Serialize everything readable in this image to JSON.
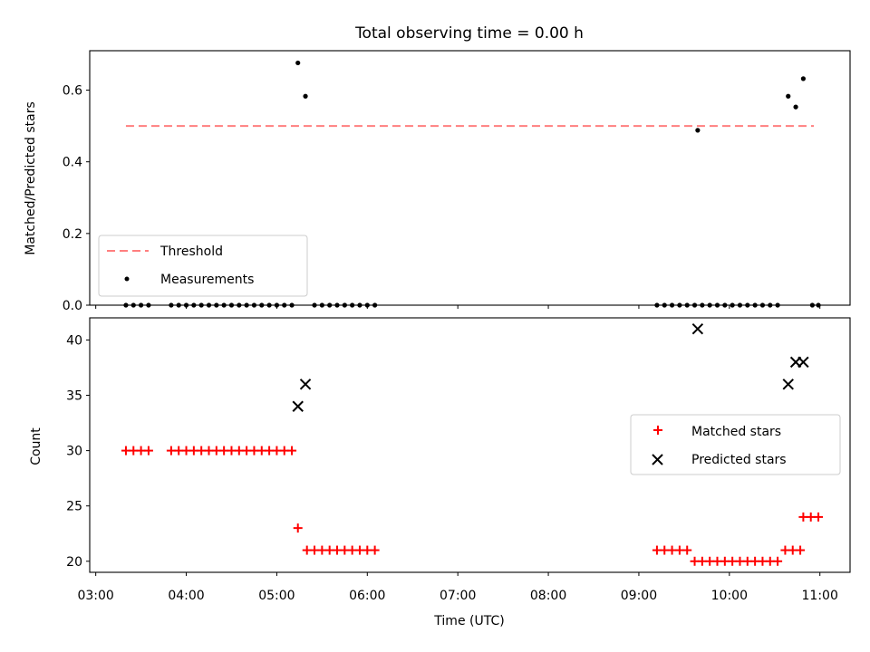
{
  "chart_data": {
    "type": "scatter",
    "title": "Total observing time = 0.00 h",
    "xlabel": "Time (UTC)",
    "x_axis": {
      "ticks": [
        "03:00",
        "04:00",
        "05:00",
        "06:00",
        "07:00",
        "08:00",
        "09:00",
        "10:00",
        "11:00"
      ],
      "range": [
        "02:56",
        "11:20"
      ]
    },
    "panels": [
      {
        "name": "ratio",
        "ylabel": "Matched/Predicted stars",
        "ylim": [
          0,
          0.71
        ],
        "yticks": [
          "0.0",
          "0.2",
          "0.4",
          "0.6"
        ],
        "grid": false,
        "legend": {
          "placement": "lower-left",
          "entries": [
            "Threshold",
            "Measurements"
          ]
        },
        "threshold": {
          "name": "Threshold",
          "value": 0.5,
          "x_start": "03:20",
          "x_end": "10:56",
          "color": "#ff7f7f",
          "style": "dashed"
        },
        "series": [
          {
            "name": "Measurements",
            "marker": "dot",
            "color": "#000000",
            "points": [
              [
                "03:20",
                0
              ],
              [
                "03:25",
                0
              ],
              [
                "03:30",
                0
              ],
              [
                "03:35",
                0
              ],
              [
                "03:50",
                0
              ],
              [
                "03:55",
                0
              ],
              [
                "04:00",
                0
              ],
              [
                "04:05",
                0
              ],
              [
                "04:10",
                0
              ],
              [
                "04:15",
                0
              ],
              [
                "04:20",
                0
              ],
              [
                "04:25",
                0
              ],
              [
                "04:30",
                0
              ],
              [
                "04:35",
                0
              ],
              [
                "04:40",
                0
              ],
              [
                "04:45",
                0
              ],
              [
                "04:50",
                0
              ],
              [
                "04:55",
                0
              ],
              [
                "05:00",
                0
              ],
              [
                "05:05",
                0
              ],
              [
                "05:10",
                0
              ],
              [
                "05:14",
                0.676
              ],
              [
                "05:19",
                0.583
              ],
              [
                "05:25",
                0
              ],
              [
                "05:30",
                0
              ],
              [
                "05:35",
                0
              ],
              [
                "05:40",
                0
              ],
              [
                "05:45",
                0
              ],
              [
                "05:50",
                0
              ],
              [
                "05:55",
                0
              ],
              [
                "06:00",
                0
              ],
              [
                "06:05",
                0
              ],
              [
                "09:12",
                0
              ],
              [
                "09:17",
                0
              ],
              [
                "09:22",
                0
              ],
              [
                "09:27",
                0
              ],
              [
                "09:32",
                0
              ],
              [
                "09:37",
                0
              ],
              [
                "09:39",
                0.488
              ],
              [
                "09:42",
                0
              ],
              [
                "09:47",
                0
              ],
              [
                "09:52",
                0
              ],
              [
                "09:57",
                0
              ],
              [
                "10:02",
                0
              ],
              [
                "10:07",
                0
              ],
              [
                "10:12",
                0
              ],
              [
                "10:17",
                0
              ],
              [
                "10:22",
                0
              ],
              [
                "10:27",
                0
              ],
              [
                "10:32",
                0
              ],
              [
                "10:39",
                0.583
              ],
              [
                "10:44",
                0.553
              ],
              [
                "10:49",
                0.632
              ],
              [
                "10:55",
                0
              ],
              [
                "10:59",
                0
              ]
            ]
          }
        ]
      },
      {
        "name": "count",
        "ylabel": "Count",
        "ylim": [
          19.0,
          42.0
        ],
        "yticks": [
          "20",
          "25",
          "30",
          "35",
          "40"
        ],
        "grid": false,
        "legend": {
          "placement": "center-right",
          "entries": [
            "Matched stars",
            "Predicted stars"
          ]
        },
        "series": [
          {
            "name": "Matched stars",
            "marker": "plus",
            "color": "#ff0000",
            "points": [
              [
                "03:20",
                30
              ],
              [
                "03:25",
                30
              ],
              [
                "03:30",
                30
              ],
              [
                "03:35",
                30
              ],
              [
                "03:50",
                30
              ],
              [
                "03:55",
                30
              ],
              [
                "04:00",
                30
              ],
              [
                "04:05",
                30
              ],
              [
                "04:10",
                30
              ],
              [
                "04:15",
                30
              ],
              [
                "04:20",
                30
              ],
              [
                "04:25",
                30
              ],
              [
                "04:30",
                30
              ],
              [
                "04:35",
                30
              ],
              [
                "04:40",
                30
              ],
              [
                "04:45",
                30
              ],
              [
                "04:50",
                30
              ],
              [
                "04:55",
                30
              ],
              [
                "05:00",
                30
              ],
              [
                "05:05",
                30
              ],
              [
                "05:10",
                30
              ],
              [
                "05:14",
                23
              ],
              [
                "05:20",
                21
              ],
              [
                "05:25",
                21
              ],
              [
                "05:30",
                21
              ],
              [
                "05:35",
                21
              ],
              [
                "05:40",
                21
              ],
              [
                "05:45",
                21
              ],
              [
                "05:50",
                21
              ],
              [
                "05:55",
                21
              ],
              [
                "06:00",
                21
              ],
              [
                "06:05",
                21
              ],
              [
                "09:12",
                21
              ],
              [
                "09:17",
                21
              ],
              [
                "09:22",
                21
              ],
              [
                "09:27",
                21
              ],
              [
                "09:32",
                21
              ],
              [
                "09:37",
                20
              ],
              [
                "09:42",
                20
              ],
              [
                "09:47",
                20
              ],
              [
                "09:52",
                20
              ],
              [
                "09:57",
                20
              ],
              [
                "10:02",
                20
              ],
              [
                "10:07",
                20
              ],
              [
                "10:12",
                20
              ],
              [
                "10:17",
                20
              ],
              [
                "10:22",
                20
              ],
              [
                "10:27",
                20
              ],
              [
                "10:32",
                20
              ],
              [
                "10:37",
                21
              ],
              [
                "10:42",
                21
              ],
              [
                "10:47",
                21
              ],
              [
                "10:49",
                24
              ],
              [
                "10:54",
                24
              ],
              [
                "10:59",
                24
              ]
            ]
          },
          {
            "name": "Predicted stars",
            "marker": "x",
            "color": "#000000",
            "points": [
              [
                "05:14",
                34
              ],
              [
                "05:19",
                36
              ],
              [
                "09:39",
                41
              ],
              [
                "10:39",
                36
              ],
              [
                "10:44",
                38
              ],
              [
                "10:49",
                38
              ]
            ]
          }
        ]
      }
    ]
  }
}
